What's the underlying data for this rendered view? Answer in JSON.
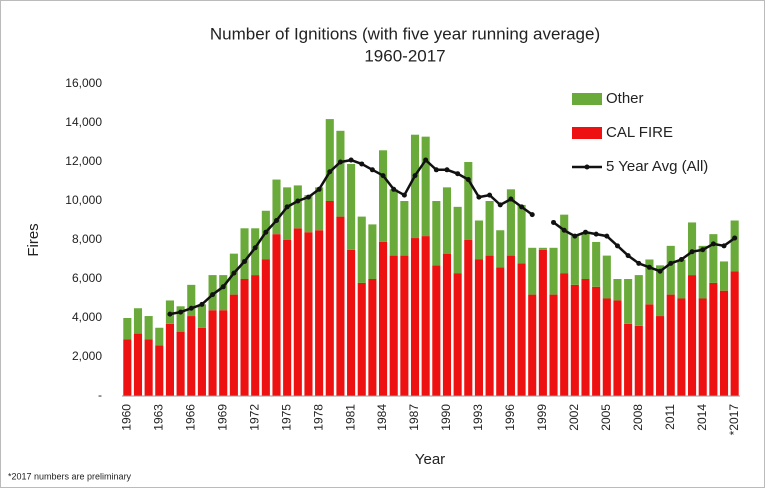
{
  "chart_data": {
    "type": "stacked_bar_line",
    "title": "Number of Ignitions (with five year running average)",
    "subtitle": "1960-2017",
    "x_label": "Year",
    "y_label": "Fires",
    "footnote": "*2017 numbers are preliminary",
    "categories": [
      "1960",
      null,
      null,
      "1963",
      null,
      null,
      "1966",
      null,
      null,
      "1969",
      null,
      null,
      "1972",
      null,
      null,
      "1975",
      null,
      null,
      "1978",
      null,
      null,
      "1981",
      null,
      null,
      "1984",
      null,
      null,
      "1987",
      null,
      null,
      "1990",
      null,
      null,
      "1993",
      null,
      null,
      "1996",
      null,
      null,
      "1999",
      null,
      null,
      "2002",
      null,
      null,
      "2005",
      null,
      null,
      "2008",
      null,
      null,
      "2011",
      null,
      null,
      "2014",
      null,
      null,
      "*2017"
    ],
    "series": [
      {
        "name": "CAL FIRE",
        "color": "#ee1111",
        "values": [
          2900,
          3200,
          2900,
          2600,
          3700,
          3300,
          4100,
          3500,
          4400,
          4400,
          5200,
          6000,
          6200,
          7000,
          8300,
          8000,
          8600,
          8400,
          8500,
          10000,
          9200,
          7500,
          5800,
          6000,
          7900,
          7200,
          7200,
          8100,
          8200,
          6700,
          7300,
          6300,
          8000,
          7000,
          7200,
          6600,
          7200,
          6800,
          5200,
          7500,
          5200,
          6300,
          5700,
          6000,
          5600,
          5000,
          4900,
          3700,
          3600,
          4700,
          4100,
          5200,
          5000,
          6200,
          5000,
          5800,
          5400,
          6400
        ]
      },
      {
        "name": "Other",
        "color": "#6aaa3a",
        "values": [
          1100,
          1300,
          1200,
          900,
          1200,
          1300,
          1600,
          1200,
          1800,
          1800,
          2100,
          2600,
          2400,
          2500,
          2800,
          2700,
          2200,
          1900,
          2200,
          4200,
          4400,
          4400,
          3400,
          2800,
          4700,
          3400,
          2800,
          5300,
          5100,
          3300,
          3400,
          3400,
          4000,
          2000,
          2800,
          1900,
          3400,
          3000,
          2400,
          100,
          2400,
          3000,
          2500,
          2400,
          2300,
          2200,
          1100,
          2300,
          2600,
          2300,
          2600,
          2500,
          2000,
          2700,
          2700,
          2500,
          1500,
          2600
        ]
      },
      {
        "name": "5 Year Avg (All)",
        "color": "#111111",
        "type": "line",
        "values": [
          null,
          null,
          null,
          null,
          4200,
          4300,
          4500,
          4700,
          5200,
          5600,
          6300,
          6900,
          7600,
          8400,
          9000,
          9700,
          10000,
          10200,
          10600,
          11500,
          12000,
          12100,
          11900,
          11600,
          11300,
          10600,
          10300,
          11300,
          12100,
          11600,
          11600,
          11400,
          11100,
          10200,
          10300,
          9800,
          10100,
          9700,
          9300,
          null,
          8900,
          8500,
          8200,
          8400,
          8300,
          8200,
          7700,
          7200,
          6800,
          6600,
          6400,
          6800,
          7000,
          7400,
          7500,
          7800,
          7700,
          8100
        ]
      }
    ],
    "legend_order": [
      1,
      0,
      2
    ],
    "ylim": [
      0,
      16000
    ],
    "yticks": [
      {
        "value": 0,
        "label": "-"
      },
      {
        "value": 2000,
        "label": "2,000"
      },
      {
        "value": 4000,
        "label": "4,000"
      },
      {
        "value": 6000,
        "label": "6,000"
      },
      {
        "value": 8000,
        "label": "8,000"
      },
      {
        "value": 10000,
        "label": "10,000"
      },
      {
        "value": 12000,
        "label": "12,000"
      },
      {
        "value": 14000,
        "label": "14,000"
      },
      {
        "value": 16000,
        "label": "16,000"
      }
    ],
    "grid": false
  }
}
